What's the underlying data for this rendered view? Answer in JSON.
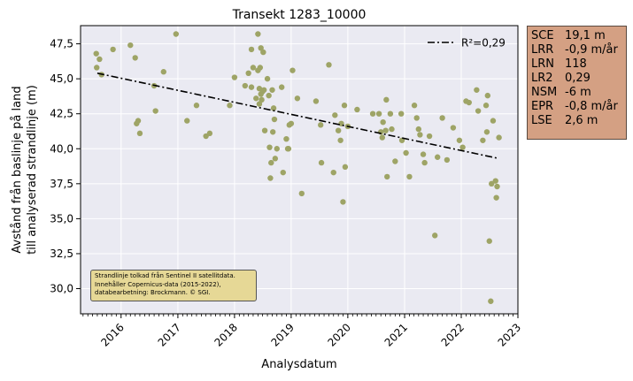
{
  "chart_data": {
    "type": "scatter",
    "title": "Transekt 1283_10000",
    "xlabel": "Analysdatum",
    "ylabel_lines": [
      "Avstånd från baslinje på land",
      "till analyserad strandlinje (m)"
    ],
    "x_ticks": [
      "2016",
      "2017",
      "2018",
      "2019",
      "2020",
      "2021",
      "2022",
      "2023"
    ],
    "y_ticks": [
      "30,0",
      "32,5",
      "35,0",
      "37,5",
      "40,0",
      "42,5",
      "45,0",
      "47,5"
    ],
    "xlim": [
      "2015-04-15",
      "2023-01-01"
    ],
    "ylim": [
      28.2,
      48.8
    ],
    "grid": true,
    "point_color": "#9ea466",
    "trend_color": "#000000",
    "legend": {
      "position": "top-right",
      "label": "R²=0,29"
    },
    "trend": {
      "x": [
        "2015-08-01",
        "2022-09-01"
      ],
      "y": [
        45.4,
        39.3
      ]
    },
    "points": [
      {
        "x": "2015-07-25",
        "y": 46.8
      },
      {
        "x": "2015-07-28",
        "y": 45.8
      },
      {
        "x": "2015-08-15",
        "y": 46.4
      },
      {
        "x": "2015-08-28",
        "y": 45.3
      },
      {
        "x": "2015-11-10",
        "y": 47.1
      },
      {
        "x": "2016-03-01",
        "y": 47.4
      },
      {
        "x": "2016-04-01",
        "y": 46.5
      },
      {
        "x": "2016-04-10",
        "y": 41.8
      },
      {
        "x": "2016-04-20",
        "y": 42.0
      },
      {
        "x": "2016-05-01",
        "y": 41.1
      },
      {
        "x": "2016-08-01",
        "y": 44.5
      },
      {
        "x": "2016-08-10",
        "y": 42.7
      },
      {
        "x": "2016-10-01",
        "y": 45.5
      },
      {
        "x": "2016-12-20",
        "y": 48.2
      },
      {
        "x": "2017-03-01",
        "y": 42.0
      },
      {
        "x": "2017-05-01",
        "y": 43.1
      },
      {
        "x": "2017-07-01",
        "y": 40.9
      },
      {
        "x": "2017-07-25",
        "y": 41.1
      },
      {
        "x": "2017-12-01",
        "y": 43.1
      },
      {
        "x": "2018-01-01",
        "y": 45.1
      },
      {
        "x": "2018-03-10",
        "y": 44.5
      },
      {
        "x": "2018-04-01",
        "y": 45.4
      },
      {
        "x": "2018-04-20",
        "y": 44.4
      },
      {
        "x": "2018-04-20",
        "y": 47.1
      },
      {
        "x": "2018-05-01",
        "y": 45.8
      },
      {
        "x": "2018-05-20",
        "y": 43.6
      },
      {
        "x": "2018-06-01",
        "y": 48.2
      },
      {
        "x": "2018-06-01",
        "y": 45.6
      },
      {
        "x": "2018-06-10",
        "y": 44.3
      },
      {
        "x": "2018-06-10",
        "y": 43.2
      },
      {
        "x": "2018-06-15",
        "y": 45.8
      },
      {
        "x": "2018-06-20",
        "y": 47.2
      },
      {
        "x": "2018-06-20",
        "y": 43.9
      },
      {
        "x": "2018-06-25",
        "y": 43.5
      },
      {
        "x": "2018-07-01",
        "y": 44.1
      },
      {
        "x": "2018-07-05",
        "y": 46.9
      },
      {
        "x": "2018-07-10",
        "y": 44.2
      },
      {
        "x": "2018-07-15",
        "y": 41.3
      },
      {
        "x": "2018-08-01",
        "y": 45.0
      },
      {
        "x": "2018-08-10",
        "y": 43.8
      },
      {
        "x": "2018-08-15",
        "y": 40.1
      },
      {
        "x": "2018-08-20",
        "y": 37.9
      },
      {
        "x": "2018-08-25",
        "y": 39.0
      },
      {
        "x": "2018-09-01",
        "y": 44.2
      },
      {
        "x": "2018-09-05",
        "y": 41.2
      },
      {
        "x": "2018-09-10",
        "y": 42.9
      },
      {
        "x": "2018-09-15",
        "y": 42.1
      },
      {
        "x": "2018-09-20",
        "y": 39.3
      },
      {
        "x": "2018-10-01",
        "y": 40.0
      },
      {
        "x": "2018-11-01",
        "y": 44.4
      },
      {
        "x": "2018-11-10",
        "y": 38.3
      },
      {
        "x": "2018-12-01",
        "y": 40.7
      },
      {
        "x": "2018-12-10",
        "y": 40.0
      },
      {
        "x": "2018-12-15",
        "y": 40.0
      },
      {
        "x": "2018-12-20",
        "y": 41.7
      },
      {
        "x": "2019-01-01",
        "y": 41.8
      },
      {
        "x": "2019-01-10",
        "y": 45.6
      },
      {
        "x": "2019-02-10",
        "y": 43.6
      },
      {
        "x": "2019-03-10",
        "y": 36.8
      },
      {
        "x": "2019-06-10",
        "y": 43.4
      },
      {
        "x": "2019-07-10",
        "y": 41.7
      },
      {
        "x": "2019-07-15",
        "y": 39.0
      },
      {
        "x": "2019-09-01",
        "y": 46.0
      },
      {
        "x": "2019-10-01",
        "y": 38.3
      },
      {
        "x": "2019-10-10",
        "y": 42.4
      },
      {
        "x": "2019-11-01",
        "y": 41.3
      },
      {
        "x": "2019-11-15",
        "y": 40.6
      },
      {
        "x": "2019-11-20",
        "y": 41.8
      },
      {
        "x": "2019-12-01",
        "y": 36.2
      },
      {
        "x": "2019-12-10",
        "y": 43.1
      },
      {
        "x": "2019-12-15",
        "y": 38.7
      },
      {
        "x": "2020-01-01",
        "y": 41.6
      },
      {
        "x": "2020-03-01",
        "y": 42.8
      },
      {
        "x": "2020-06-10",
        "y": 42.5
      },
      {
        "x": "2020-07-20",
        "y": 42.5
      },
      {
        "x": "2020-08-01",
        "y": 41.2
      },
      {
        "x": "2020-08-10",
        "y": 40.8
      },
      {
        "x": "2020-08-15",
        "y": 41.9
      },
      {
        "x": "2020-09-01",
        "y": 41.3
      },
      {
        "x": "2020-09-05",
        "y": 43.5
      },
      {
        "x": "2020-09-10",
        "y": 38.0
      },
      {
        "x": "2020-10-01",
        "y": 42.5
      },
      {
        "x": "2020-10-10",
        "y": 41.4
      },
      {
        "x": "2020-11-01",
        "y": 39.1
      },
      {
        "x": "2020-12-10",
        "y": 42.5
      },
      {
        "x": "2020-12-15",
        "y": 40.6
      },
      {
        "x": "2021-01-10",
        "y": 39.7
      },
      {
        "x": "2021-02-01",
        "y": 38.0
      },
      {
        "x": "2021-03-05",
        "y": 43.1
      },
      {
        "x": "2021-03-20",
        "y": 42.2
      },
      {
        "x": "2021-04-01",
        "y": 41.4
      },
      {
        "x": "2021-04-10",
        "y": 41.0
      },
      {
        "x": "2021-05-01",
        "y": 39.6
      },
      {
        "x": "2021-05-10",
        "y": 39.0
      },
      {
        "x": "2021-06-10",
        "y": 40.9
      },
      {
        "x": "2021-07-15",
        "y": 33.8
      },
      {
        "x": "2021-08-01",
        "y": 39.4
      },
      {
        "x": "2021-09-01",
        "y": 42.2
      },
      {
        "x": "2021-10-01",
        "y": 39.2
      },
      {
        "x": "2021-11-10",
        "y": 41.5
      },
      {
        "x": "2021-12-20",
        "y": 40.6
      },
      {
        "x": "2022-01-10",
        "y": 40.1
      },
      {
        "x": "2022-02-01",
        "y": 43.4
      },
      {
        "x": "2022-02-20",
        "y": 43.3
      },
      {
        "x": "2022-04-10",
        "y": 44.2
      },
      {
        "x": "2022-04-20",
        "y": 42.7
      },
      {
        "x": "2022-05-20",
        "y": 40.6
      },
      {
        "x": "2022-06-10",
        "y": 43.1
      },
      {
        "x": "2022-06-15",
        "y": 41.2
      },
      {
        "x": "2022-06-20",
        "y": 43.8
      },
      {
        "x": "2022-07-01",
        "y": 33.4
      },
      {
        "x": "2022-07-10",
        "y": 29.1
      },
      {
        "x": "2022-07-15",
        "y": 37.5
      },
      {
        "x": "2022-07-25",
        "y": 42.0
      },
      {
        "x": "2022-08-10",
        "y": 37.7
      },
      {
        "x": "2022-08-15",
        "y": 36.5
      },
      {
        "x": "2022-08-20",
        "y": 37.3
      },
      {
        "x": "2022-09-01",
        "y": 40.8
      }
    ]
  },
  "stats": [
    {
      "key": "SCE",
      "value": "19,1 m"
    },
    {
      "key": "LRR",
      "value": "-0,9 m/år"
    },
    {
      "key": "LRN",
      "value": "118"
    },
    {
      "key": "LR2",
      "value": "0,29"
    },
    {
      "key": "NSM",
      "value": "-6 m"
    },
    {
      "key": "EPR",
      "value": "-0,8 m/år"
    },
    {
      "key": "LSE",
      "value": "2,6 m"
    }
  ],
  "stats_box_color": "#d4a083",
  "credit_lines": [
    "Strandlinje tolkad från Sentinel II satellitdata.",
    "Innehåller Copernicus-data (2015-2022),",
    "databearbetning: Brockmann. © SGI."
  ],
  "credit_box_color": "#e6d896"
}
